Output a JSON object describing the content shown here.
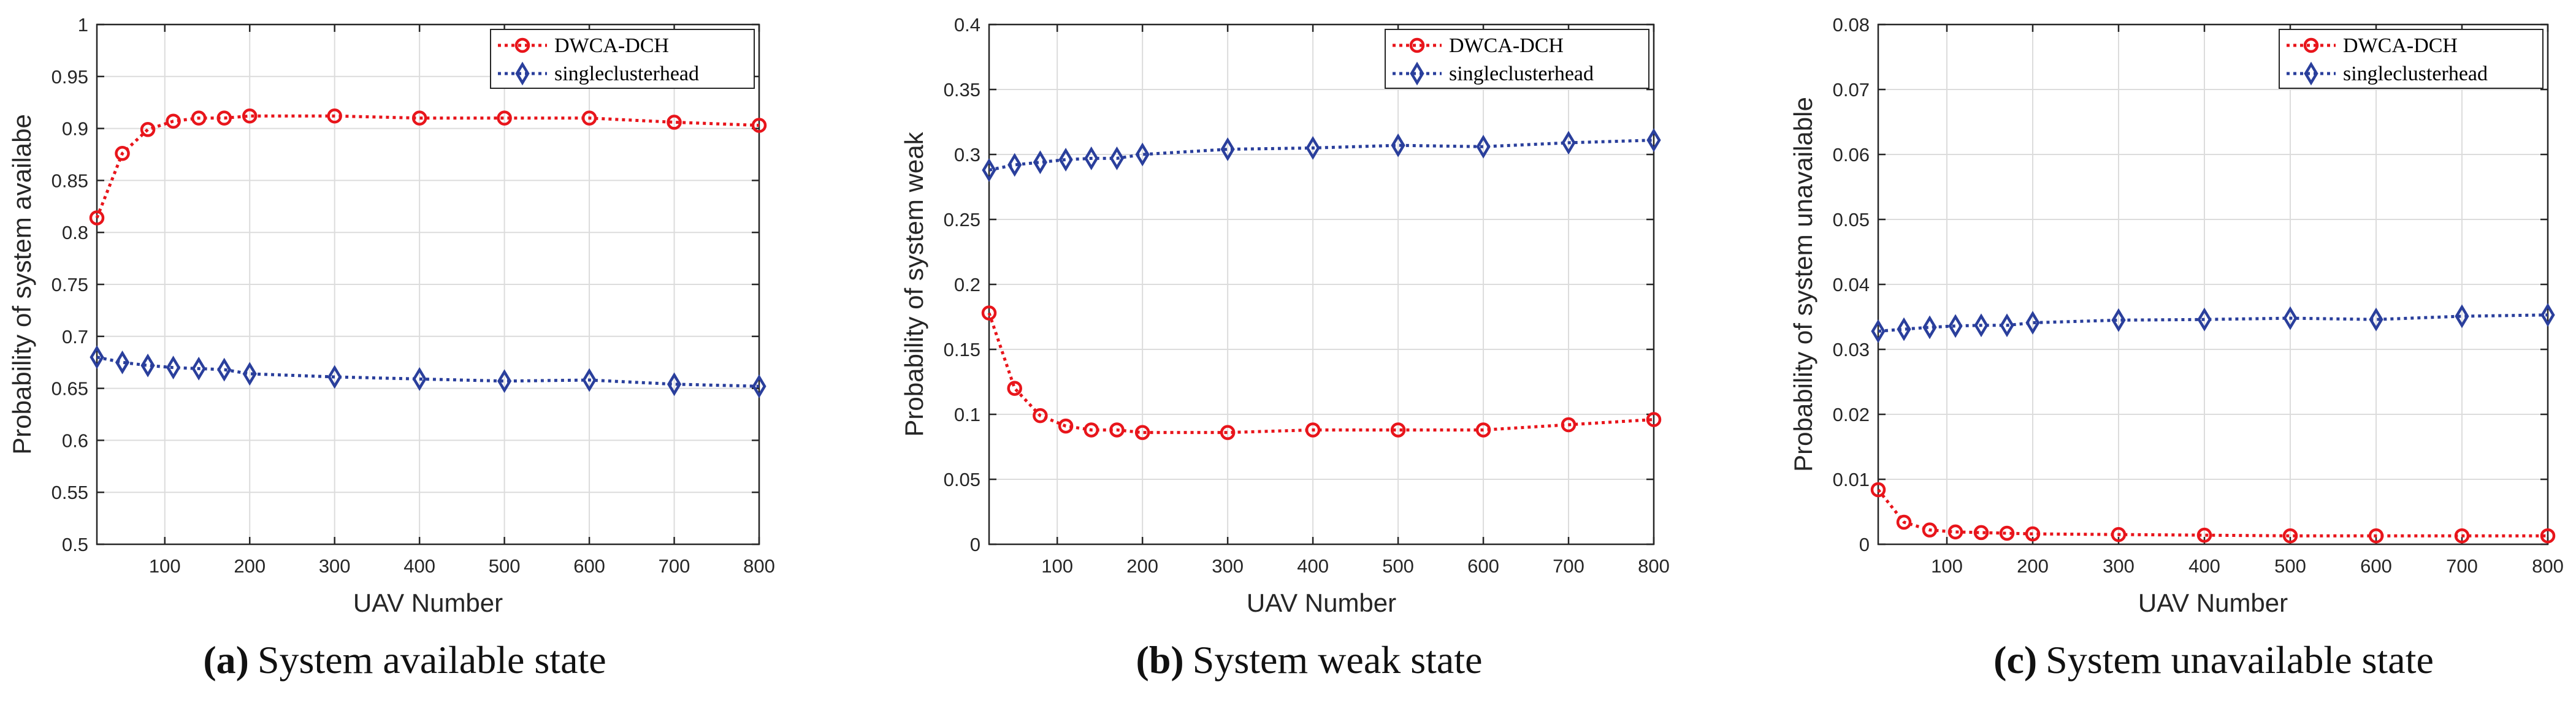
{
  "series_style": {
    "DWCA-DCH": {
      "color": "#e8151b",
      "marker": "circle"
    },
    "singleclusterhead": {
      "color": "#2a3f9c",
      "marker": "diamond"
    }
  },
  "chart_data": [
    {
      "id": "a",
      "type": "line",
      "caption_letter": "(a)",
      "caption_text": "System available state",
      "xlabel": "UAV Number",
      "ylabel": "Probability of system availabe",
      "xlim": [
        20,
        800
      ],
      "ylim": [
        0.5,
        1
      ],
      "xticks": [
        100,
        200,
        300,
        400,
        500,
        600,
        700,
        800
      ],
      "xtick_labels": [
        "100",
        "200",
        "300",
        "400",
        "500",
        "600",
        "700",
        "800"
      ],
      "yticks": [
        0.5,
        0.55,
        0.6,
        0.65,
        0.7,
        0.75,
        0.8,
        0.85,
        0.9,
        0.95,
        1
      ],
      "ytick_labels": [
        "0.5",
        "0.55",
        "0.6",
        "0.65",
        "0.7",
        "0.75",
        "0.8",
        "0.85",
        "0.9",
        "0.95",
        "1"
      ],
      "grid": true,
      "legend_position": "top-right",
      "x": [
        20,
        50,
        80,
        110,
        140,
        170,
        200,
        300,
        400,
        500,
        600,
        700,
        800
      ],
      "series": [
        {
          "name": "DWCA-DCH",
          "values": [
            0.814,
            0.876,
            0.899,
            0.907,
            0.91,
            0.91,
            0.912,
            0.912,
            0.91,
            0.91,
            0.91,
            0.906,
            0.903
          ]
        },
        {
          "name": "singleclusterhead",
          "values": [
            0.68,
            0.675,
            0.672,
            0.67,
            0.669,
            0.668,
            0.664,
            0.661,
            0.659,
            0.657,
            0.658,
            0.654,
            0.652
          ]
        }
      ]
    },
    {
      "id": "b",
      "type": "line",
      "caption_letter": "(b)",
      "caption_text": "System weak state",
      "xlabel": "UAV Number",
      "ylabel": "Probability of system weak",
      "xlim": [
        20,
        800
      ],
      "ylim": [
        0,
        0.4
      ],
      "xticks": [
        100,
        200,
        300,
        400,
        500,
        600,
        700,
        800
      ],
      "xtick_labels": [
        "100",
        "200",
        "300",
        "400",
        "500",
        "600",
        "700",
        "800"
      ],
      "yticks": [
        0,
        0.05,
        0.1,
        0.15,
        0.2,
        0.25,
        0.3,
        0.35,
        0.4
      ],
      "ytick_labels": [
        "0",
        "0.05",
        "0.1",
        "0.15",
        "0.2",
        "0.25",
        "0.3",
        "0.35",
        "0.4"
      ],
      "grid": true,
      "legend_position": "top-right",
      "x": [
        20,
        50,
        80,
        110,
        140,
        170,
        200,
        300,
        400,
        500,
        600,
        700,
        800
      ],
      "series": [
        {
          "name": "DWCA-DCH",
          "values": [
            0.178,
            0.12,
            0.099,
            0.091,
            0.088,
            0.088,
            0.086,
            0.086,
            0.088,
            0.088,
            0.088,
            0.092,
            0.096
          ]
        },
        {
          "name": "singleclusterhead",
          "values": [
            0.288,
            0.292,
            0.294,
            0.296,
            0.297,
            0.297,
            0.3,
            0.304,
            0.305,
            0.307,
            0.306,
            0.309,
            0.311
          ]
        }
      ]
    },
    {
      "id": "c",
      "type": "line",
      "caption_letter": "(c)",
      "caption_text": "System unavailable state",
      "xlabel": "UAV Number",
      "ylabel": "Probability of system unavailable",
      "xlim": [
        20,
        800
      ],
      "ylim": [
        0,
        0.08
      ],
      "xticks": [
        100,
        200,
        300,
        400,
        500,
        600,
        700,
        800
      ],
      "xtick_labels": [
        "100",
        "200",
        "300",
        "400",
        "500",
        "600",
        "700",
        "800"
      ],
      "yticks": [
        0,
        0.01,
        0.02,
        0.03,
        0.04,
        0.05,
        0.06,
        0.07,
        0.08
      ],
      "ytick_labels": [
        "0",
        "0.01",
        "0.02",
        "0.03",
        "0.04",
        "0.05",
        "0.06",
        "0.07",
        "0.08"
      ],
      "grid": true,
      "legend_position": "top-right",
      "x": [
        20,
        50,
        80,
        110,
        140,
        170,
        200,
        300,
        400,
        500,
        600,
        700,
        800
      ],
      "series": [
        {
          "name": "DWCA-DCH",
          "values": [
            0.0084,
            0.0034,
            0.0022,
            0.0019,
            0.0018,
            0.0017,
            0.0016,
            0.0015,
            0.0014,
            0.0013,
            0.0013,
            0.0013,
            0.0013
          ]
        },
        {
          "name": "singleclusterhead",
          "values": [
            0.0328,
            0.0331,
            0.0334,
            0.0336,
            0.0337,
            0.0337,
            0.0341,
            0.0345,
            0.0346,
            0.0348,
            0.0346,
            0.0351,
            0.0353
          ]
        }
      ]
    }
  ]
}
